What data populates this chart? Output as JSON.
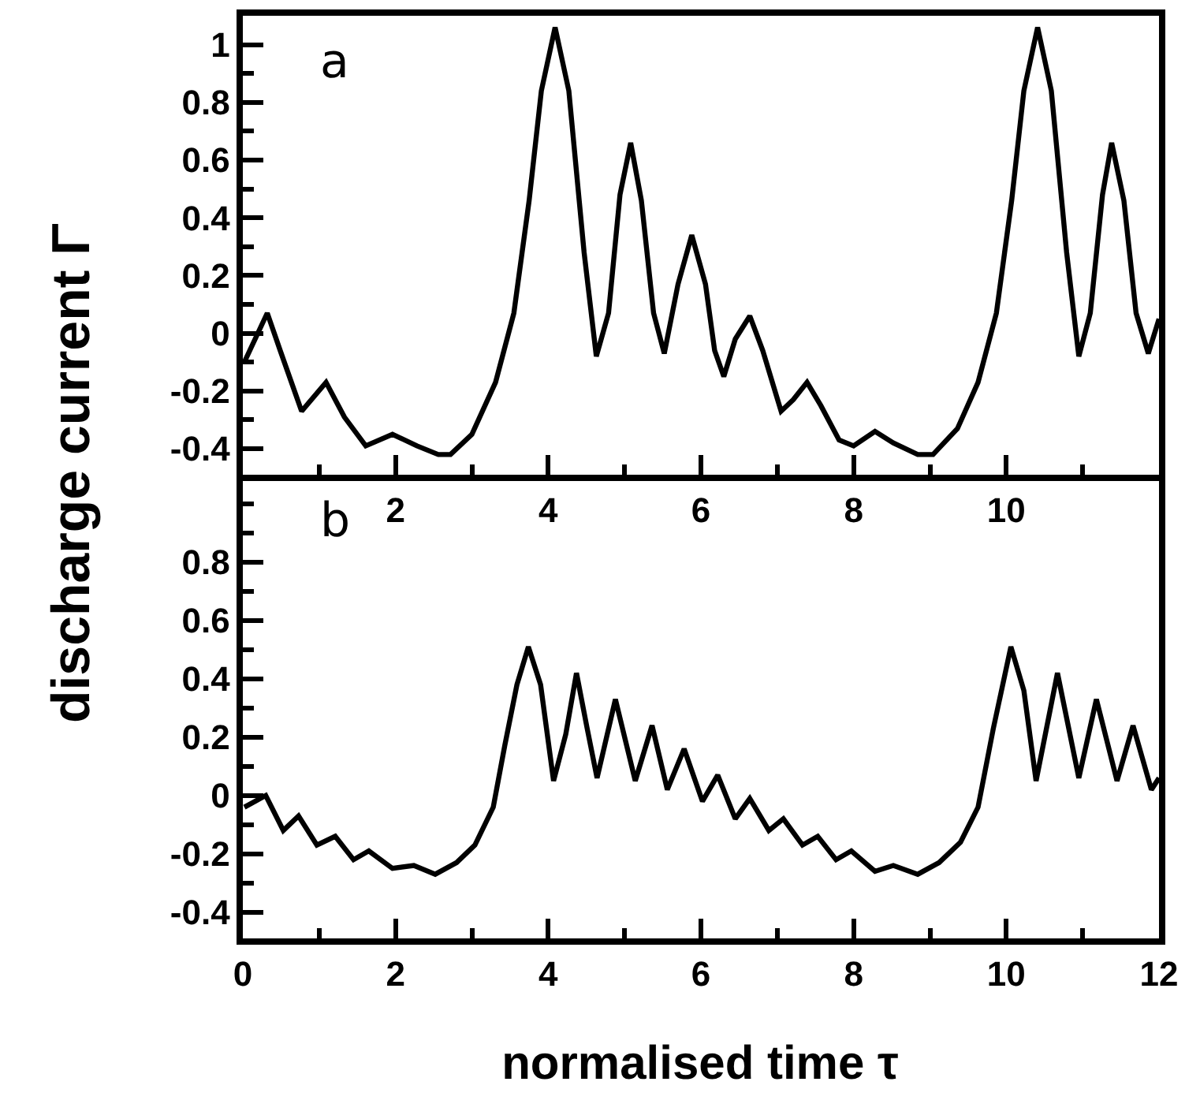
{
  "chart_data": [
    {
      "type": "line",
      "ylabel": "discharge current Γ",
      "annotations": [
        "a"
      ],
      "xlim": [
        0,
        12
      ],
      "ylim": [
        -0.49,
        1.1
      ],
      "xticks": [
        {
          "value": 1,
          "label": null
        },
        2,
        {
          "value": 3,
          "label": null
        },
        4,
        {
          "value": 5,
          "label": null
        },
        6,
        {
          "value": 7,
          "label": null
        },
        8,
        {
          "value": 9,
          "label": null
        },
        10,
        {
          "value": 11,
          "label": null
        }
      ],
      "yticks": [
        -0.4,
        {
          "value": -0.3,
          "label": null
        },
        -0.2,
        {
          "value": -0.1,
          "label": null
        },
        0,
        {
          "value": 0.1,
          "label": null
        },
        0.2,
        {
          "value": 0.3,
          "label": null
        },
        0.4,
        {
          "value": 0.5,
          "label": null
        },
        0.6,
        {
          "value": 0.7,
          "label": null
        },
        0.8,
        {
          "value": 0.9,
          "label": null
        },
        1
      ],
      "x": [
        0.02,
        0.32,
        0.49,
        0.77,
        1.09,
        1.33,
        1.61,
        1.96,
        2.28,
        2.56,
        2.72,
        3.0,
        3.31,
        3.55,
        3.75,
        3.91,
        4.09,
        4.27,
        4.47,
        4.63,
        4.79,
        4.94,
        5.08,
        5.22,
        5.38,
        5.52,
        5.7,
        5.88,
        6.06,
        6.18,
        6.3,
        6.45,
        6.64,
        6.81,
        7.05,
        7.21,
        7.39,
        7.57,
        7.81,
        8.0,
        8.28,
        8.52,
        8.84,
        9.04,
        9.36,
        9.63,
        9.87,
        10.07,
        10.23,
        10.41,
        10.59,
        10.79,
        10.95,
        11.1,
        11.26,
        11.38,
        11.54,
        11.7,
        11.86,
        12.0
      ],
      "series": [
        {
          "color": "#000000",
          "values": [
            -0.1,
            0.07,
            -0.06,
            -0.27,
            -0.17,
            -0.29,
            -0.39,
            -0.35,
            -0.39,
            -0.42,
            -0.42,
            -0.35,
            -0.17,
            0.07,
            0.46,
            0.84,
            1.06,
            0.84,
            0.28,
            -0.08,
            0.07,
            0.48,
            0.66,
            0.46,
            0.07,
            -0.07,
            0.17,
            0.34,
            0.17,
            -0.06,
            -0.15,
            -0.02,
            0.06,
            -0.06,
            -0.27,
            -0.23,
            -0.17,
            -0.25,
            -0.37,
            -0.39,
            -0.34,
            -0.38,
            -0.42,
            -0.42,
            -0.33,
            -0.17,
            0.07,
            0.46,
            0.84,
            1.06,
            0.84,
            0.28,
            -0.08,
            0.07,
            0.48,
            0.66,
            0.46,
            0.07,
            -0.07,
            0.05
          ]
        }
      ]
    },
    {
      "type": "line",
      "xlabel": "normalised time τ",
      "annotations": [
        "b"
      ],
      "xlim": [
        0,
        12
      ],
      "ylim": [
        -0.49,
        1.1
      ],
      "xticks": [
        0,
        {
          "value": 1,
          "label": null
        },
        2,
        {
          "value": 3,
          "label": null
        },
        4,
        {
          "value": 5,
          "label": null
        },
        6,
        {
          "value": 7,
          "label": null
        },
        8,
        {
          "value": 9,
          "label": null
        },
        10,
        {
          "value": 11,
          "label": null
        },
        12
      ],
      "yticks": [
        -0.4,
        {
          "value": -0.3,
          "label": null
        },
        -0.2,
        {
          "value": -0.1,
          "label": null
        },
        0,
        {
          "value": 0.1,
          "label": null
        },
        0.2,
        {
          "value": 0.3,
          "label": null
        },
        0.4,
        {
          "value": 0.5,
          "label": null
        },
        0.6,
        {
          "value": 0.7,
          "label": null
        },
        0.8,
        {
          "value": 0.9,
          "label": null
        },
        {
          "value": 1,
          "label": null
        }
      ],
      "x": [
        0.02,
        0.3,
        0.53,
        0.73,
        0.97,
        1.21,
        1.45,
        1.65,
        1.96,
        2.24,
        2.52,
        2.8,
        3.04,
        3.28,
        3.43,
        3.59,
        3.74,
        3.9,
        4.07,
        4.23,
        4.37,
        4.51,
        4.64,
        4.88,
        5.14,
        5.36,
        5.56,
        5.78,
        6.02,
        6.22,
        6.45,
        6.64,
        6.89,
        7.08,
        7.33,
        7.53,
        7.77,
        7.97,
        8.28,
        8.52,
        8.84,
        9.12,
        9.4,
        9.63,
        9.83,
        10.06,
        10.23,
        10.39,
        10.67,
        10.95,
        11.18,
        11.45,
        11.66,
        11.9,
        12.0
      ],
      "series": [
        {
          "color": "#000000",
          "values": [
            -0.04,
            0.0,
            -0.12,
            -0.07,
            -0.17,
            -0.14,
            -0.22,
            -0.19,
            -0.25,
            -0.24,
            -0.27,
            -0.23,
            -0.17,
            -0.04,
            0.17,
            0.38,
            0.51,
            0.38,
            0.05,
            0.21,
            0.42,
            0.23,
            0.06,
            0.33,
            0.05,
            0.24,
            0.02,
            0.16,
            -0.02,
            0.07,
            -0.08,
            -0.01,
            -0.12,
            -0.08,
            -0.17,
            -0.14,
            -0.22,
            -0.19,
            -0.26,
            -0.24,
            -0.27,
            -0.23,
            -0.16,
            -0.04,
            0.23,
            0.51,
            0.36,
            0.05,
            0.42,
            0.06,
            0.33,
            0.05,
            0.24,
            0.02,
            0.06
          ]
        }
      ]
    }
  ]
}
